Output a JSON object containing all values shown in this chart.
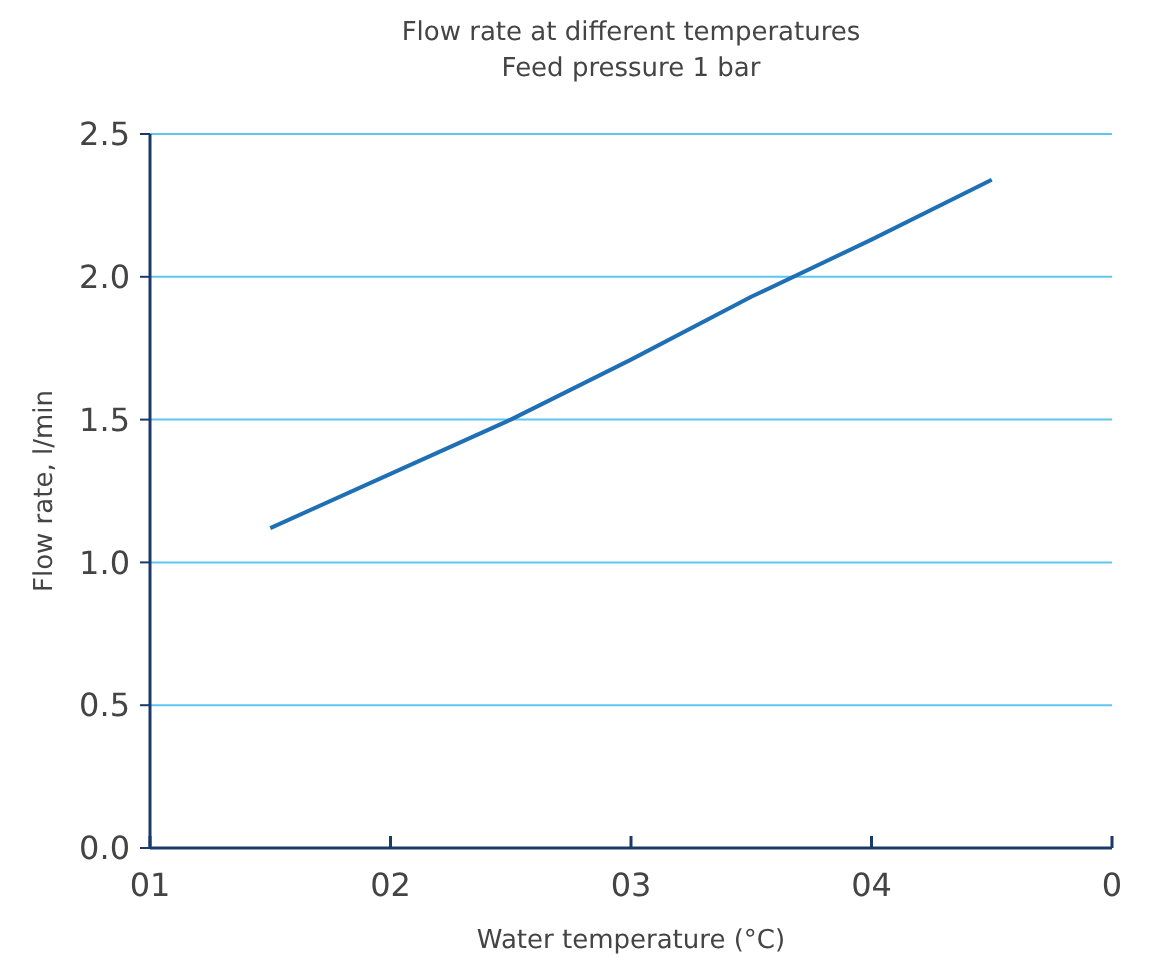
{
  "chart_data": {
    "type": "line",
    "title": "Flow rate at different temperatures",
    "subtitle": "Feed pressure 1 bar",
    "xlabel": "Water temperature (°C)",
    "ylabel": "Flow rate, l/min",
    "categories": [
      "01",
      null,
      "02",
      null,
      "03",
      null,
      "04",
      null,
      "0"
    ],
    "series": [
      {
        "color": "#1f6fb5",
        "values": [
          null,
          1.12,
          1.31,
          1.5,
          1.71,
          1.93,
          2.13,
          2.34,
          null
        ]
      }
    ],
    "ylim": [
      0,
      2.5
    ],
    "yticks": [
      {
        "value": 0,
        "label": "0.0"
      },
      {
        "value": 0.5,
        "label": "0.5"
      },
      {
        "value": 1,
        "label": "1.0"
      },
      {
        "value": 1.5,
        "label": "1.5"
      },
      {
        "value": 2,
        "label": "2.0"
      },
      {
        "value": 2.5,
        "label": "2.5"
      }
    ],
    "grid": "y",
    "marker": "none",
    "line_style": "solid"
  }
}
